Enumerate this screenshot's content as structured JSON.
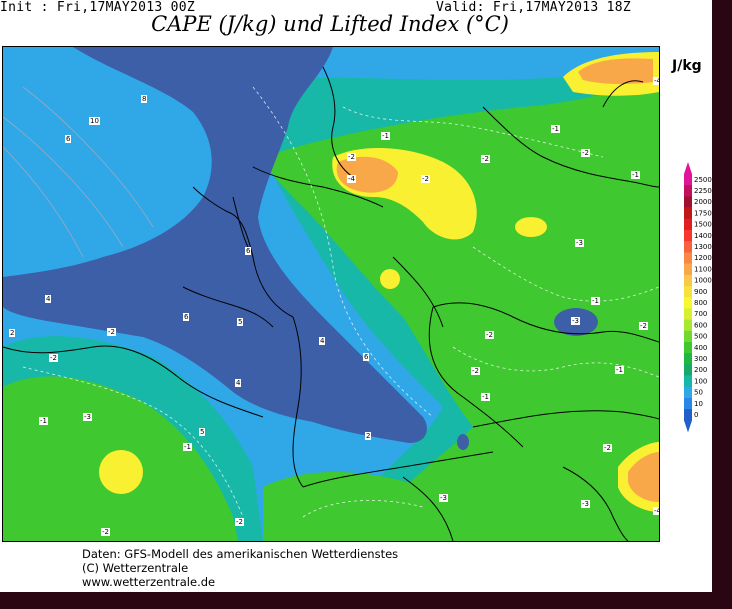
{
  "header": {
    "init": "Init : Fri,17MAY2013 00Z",
    "valid": "Valid: Fri,17MAY2013 18Z",
    "title": "CAPE (J/kg) und Lifted Index (°C)",
    "unit": "J/kg"
  },
  "footer": {
    "line1": "Daten: GFS-Modell des amerikanischen Wetterdienstes",
    "line2": "(C) Wetterzentrale",
    "line3": "www.wetterzentrale.de"
  },
  "colorbar": {
    "levels": [
      "2500",
      "2250",
      "2000",
      "1750",
      "1500",
      "1400",
      "1300",
      "1200",
      "1100",
      "1000",
      "900",
      "800",
      "700",
      "600",
      "500",
      "400",
      "300",
      "200",
      "100",
      "50",
      "10",
      "0"
    ],
    "colors": [
      "#e0139a",
      "#c3105a",
      "#a01030",
      "#c01818",
      "#e02020",
      "#f83830",
      "#f86040",
      "#f88848",
      "#f8a848",
      "#f8c848",
      "#f8e040",
      "#f8f830",
      "#d8f030",
      "#a8e830",
      "#70d830",
      "#40c830",
      "#20b840",
      "#18a868",
      "#18b8a8",
      "#30a8e8",
      "#2888e8",
      "#2060c8"
    ]
  },
  "map_labels": {
    "li_labels": [
      "-4",
      "-2",
      "-1",
      "-2",
      "-1",
      "-3",
      "-2",
      "-1",
      "-2",
      "-3",
      "-2",
      "-1",
      "-2",
      "-1",
      "-2",
      "-4",
      "-1",
      "-2",
      "-2",
      "-1",
      "-3",
      "-2",
      "-2",
      "-3",
      "-1",
      "-2",
      "-3",
      "-4"
    ],
    "pos_labels": [
      "8",
      "10",
      "6",
      "6",
      "4",
      "2",
      "6",
      "5",
      "4",
      "4",
      "6",
      "5",
      "2"
    ]
  },
  "colors": {
    "sea_blue": "#2e8de0",
    "stable": "#3d5fa8",
    "light_blue": "#30a8e8",
    "teal": "#18b8a8",
    "green": "#40c830",
    "yellow": "#f8f030",
    "orange": "#f8a848",
    "frame": "#2a0612"
  }
}
